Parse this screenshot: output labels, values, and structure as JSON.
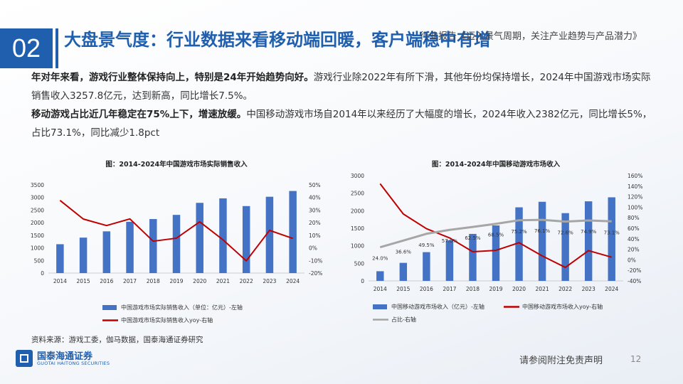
{
  "header": {
    "section_no": "02",
    "title": "大盘景气度：行业数据来看移动端回暖，客户端稳中有增",
    "report_title": "行业报告《迈入景气周期，关注产业趋势与产品潜力》"
  },
  "body": {
    "p1_bold": "年对年来看，游戏行业整体保持向上，特别是24年开始趋势向好。",
    "p1_text": "游戏行业除2022年有所下滑，其他年份均保持增长，2024年中国游戏市场实际销售收入3257.8亿元，达到新高，同比增长7.5%。",
    "p2_bold": "移动游戏占比近几年稳定在75%上下，增速放缓。",
    "p2_text": "中国移动游戏市场自2014年以来经历了大幅度的增长，2024年收入2382亿元，同比增长5%，占比73.1%，同比减少1.8pct"
  },
  "chart_data": [
    {
      "type": "bar",
      "title": "图：2014-2024年中国游戏市场实际销售收入",
      "categories": [
        "2014",
        "2015",
        "2016",
        "2017",
        "2018",
        "2019",
        "2020",
        "2021",
        "2022",
        "2023",
        "2024"
      ],
      "y_left_ticks": [
        "0",
        "500",
        "1000",
        "1500",
        "2000",
        "2500",
        "3000",
        "3500"
      ],
      "y_right_ticks": [
        "-20%",
        "-10%",
        "0%",
        "10%",
        "20%",
        "30%",
        "40%",
        "50%"
      ],
      "ylim_left": [
        0,
        3500
      ],
      "ylim_right": [
        -20,
        50
      ],
      "series": [
        {
          "name": "中国游戏市场实际销售收入（单位：亿元）-左轴",
          "kind": "bar",
          "axis": "left",
          "color": "#4472c4",
          "values": [
            1145,
            1407,
            1656,
            2036,
            2144,
            2309,
            2787,
            2965,
            2659,
            3029,
            3258
          ]
        },
        {
          "name": "中国游戏市场实际销售收入yoy-右轴",
          "kind": "line",
          "axis": "right",
          "color": "#c00000",
          "values": [
            37.7,
            22.9,
            17.7,
            23.0,
            5.3,
            7.7,
            20.7,
            6.4,
            -10.3,
            13.9,
            7.5
          ]
        }
      ],
      "legend": "bottom"
    },
    {
      "type": "bar",
      "title": "图：2014-2024年中国移动游戏市场收入",
      "categories": [
        "2014",
        "2015",
        "2016",
        "2017",
        "2018",
        "2019",
        "2020",
        "2021",
        "2022",
        "2023",
        "2024"
      ],
      "y_left_ticks": [
        "0",
        "500",
        "1000",
        "1500",
        "2000",
        "2500",
        "3000"
      ],
      "y_right_ticks": [
        "-40%",
        "-20%",
        "0%",
        "20%",
        "40%",
        "60%",
        "80%",
        "100%",
        "120%",
        "140%",
        "160%"
      ],
      "ylim_left": [
        0,
        3000
      ],
      "ylim_right": [
        -40,
        160
      ],
      "series": [
        {
          "name": "中国移动游戏市场收入（亿元）-左轴",
          "kind": "bar",
          "axis": "left",
          "color": "#4472c4",
          "values": [
            275,
            514,
            819,
            1161,
            1339,
            1581,
            2097,
            2255,
            1931,
            2268,
            2382
          ]
        },
        {
          "name": "中国移动游戏市场收入yoy-右轴",
          "kind": "line",
          "axis": "right",
          "color": "#c00000",
          "values": [
            144.6,
            87.2,
            59.2,
            41.7,
            15.4,
            18.0,
            32.6,
            7.5,
            -14.4,
            17.5,
            5.0
          ]
        },
        {
          "name": "占比-右轴",
          "kind": "line",
          "axis": "right",
          "color": "#a6a6a6",
          "values": [
            24.0,
            36.6,
            49.5,
            57.0,
            62.5,
            68.5,
            75.2,
            76.1,
            72.6,
            74.9,
            73.1
          ],
          "labels": [
            "24.0%",
            "36.6%",
            "49.5%",
            "57.0%",
            "62.5%",
            "68.5%",
            "75.2%",
            "76.1%",
            "72.6%",
            "74.9%",
            "73.1%"
          ]
        }
      ],
      "legend": "bottom"
    }
  ],
  "footer": {
    "source": "资料来源：游戏工委，伽马数据，国泰海通证券研究",
    "logo_cn": "国泰海通证券",
    "logo_en": "GUOTAI HAITONG SECURITIES",
    "disclaimer": "请参阅附注免责声明",
    "page": "12"
  }
}
